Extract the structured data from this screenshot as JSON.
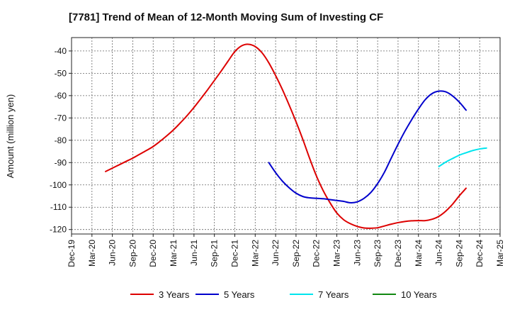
{
  "chart_data": {
    "type": "line",
    "title": "[7781]  Trend of Mean of 12-Month Moving Sum of Investing CF",
    "xlabel": "",
    "ylabel": "Amount (million yen)",
    "ylim": [
      -122,
      -34
    ],
    "yticks": [
      -40,
      -50,
      -60,
      -70,
      -80,
      -90,
      -100,
      -110,
      -120
    ],
    "grid": true,
    "legend_position": "bottom",
    "x_tick_labels": [
      "Dec-19",
      "Mar-20",
      "Jun-20",
      "Sep-20",
      "Dec-20",
      "Mar-21",
      "Jun-21",
      "Sep-21",
      "Dec-21",
      "Mar-22",
      "Jun-22",
      "Sep-22",
      "Dec-22",
      "Mar-23",
      "Jun-23",
      "Sep-23",
      "Dec-23",
      "Mar-24",
      "Jun-24",
      "Sep-24",
      "Dec-24",
      "Mar-25"
    ],
    "series": [
      {
        "name": "3 Years",
        "color": "#dd0000",
        "start_month_index": 5,
        "values": [
          -94,
          -92.5,
          -91,
          -89.5,
          -88,
          -86.3,
          -84.6,
          -82.8,
          -80.5,
          -78,
          -75.3,
          -72.2,
          -68.9,
          -65.3,
          -61.4,
          -57.4,
          -53.2,
          -49,
          -44.6,
          -40.3,
          -37.7,
          -37,
          -38,
          -40.8,
          -45.3,
          -51,
          -57.3,
          -64.3,
          -71.7,
          -79.6,
          -88.1,
          -96,
          -102.6,
          -108,
          -112.6,
          -115.6,
          -117.4,
          -118.6,
          -119.3,
          -119.4,
          -119.2,
          -118.4,
          -117.6,
          -116.9,
          -116.4,
          -116.1,
          -116,
          -116,
          -115.4,
          -114.1,
          -111.8,
          -108.7,
          -104.9,
          -101.5
        ]
      },
      {
        "name": "5 Years",
        "color": "#0000cc",
        "start_month_index": 29,
        "values": [
          -90,
          -94.5,
          -98.3,
          -101.3,
          -103.7,
          -105.2,
          -105.8,
          -106,
          -106.2,
          -106.6,
          -107,
          -107.4,
          -108,
          -107.6,
          -106,
          -103.4,
          -99.4,
          -94.3,
          -88,
          -81.8,
          -76,
          -70.8,
          -66,
          -61.8,
          -59.1,
          -58,
          -58.3,
          -60.1,
          -62.9,
          -66.5
        ]
      },
      {
        "name": "7 Years",
        "color": "#00e5ee",
        "start_month_index": 54,
        "values": [
          -91.8,
          -89.8,
          -88.2,
          -86.7,
          -85.6,
          -84.6,
          -83.9,
          -83.5
        ]
      },
      {
        "name": "10 Years",
        "color": "#118811",
        "start_month_index": 0,
        "values": []
      }
    ]
  }
}
